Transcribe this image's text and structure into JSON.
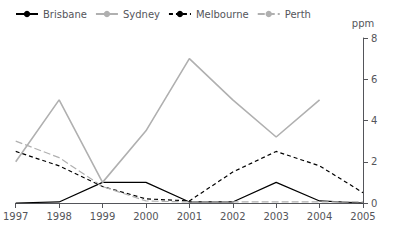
{
  "chart_data": {
    "type": "line",
    "x": [
      1997,
      1998,
      1999,
      2000,
      2001,
      2002,
      2003,
      2004,
      2005
    ],
    "series": [
      {
        "name": "Brisbane",
        "color": "#000000",
        "line_style": "solid",
        "values": [
          0.0,
          0.05,
          1.0,
          1.0,
          0.05,
          0.05,
          1.0,
          0.1,
          0.0
        ]
      },
      {
        "name": "Sydney",
        "color": "#b0b0b0",
        "line_style": "solid",
        "values": [
          2.0,
          5.0,
          1.0,
          3.5,
          7.0,
          5.0,
          3.2,
          5.0,
          null
        ]
      },
      {
        "name": "Melbourne",
        "color": "#000000",
        "line_style": "dashed",
        "values": [
          2.5,
          1.8,
          0.8,
          0.2,
          0.1,
          1.5,
          2.5,
          1.8,
          0.5
        ]
      },
      {
        "name": "Perth",
        "color": "#b0b0b0",
        "line_style": "longdash",
        "values": [
          3.0,
          2.2,
          0.8,
          0.1,
          0.05,
          0.05,
          0.05,
          0.05,
          0.05
        ]
      }
    ],
    "xlim": [
      1997,
      2005
    ],
    "xticks": [
      1997,
      1998,
      1999,
      2000,
      2001,
      2002,
      2003,
      2004,
      2005
    ],
    "ylim": [
      0,
      8
    ],
    "yticks": [
      0,
      2,
      4,
      6,
      8
    ],
    "ylabel": "ppm",
    "legend": "upper left",
    "grid": false
  }
}
